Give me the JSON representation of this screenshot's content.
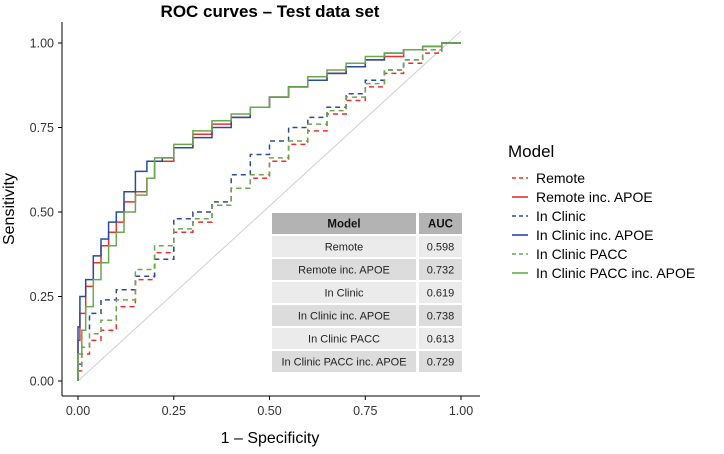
{
  "chart_data": {
    "type": "line",
    "title": "ROC curves – Test data set",
    "xlabel": "1 – Specificity",
    "ylabel": "Sensitivity",
    "xlim": [
      0,
      1
    ],
    "ylim": [
      0,
      1
    ],
    "xticks": [
      "0.00",
      "0.25",
      "0.50",
      "0.75",
      "1.00"
    ],
    "yticks": [
      "0.00",
      "0.25",
      "0.50",
      "0.75",
      "1.00"
    ],
    "grid": false,
    "reference_line": "diagonal",
    "legend": {
      "title": "Model",
      "placement": "right"
    },
    "series": [
      {
        "name": "Remote",
        "color": "#e8312f",
        "dash": "dashed",
        "x": [
          0,
          0.01,
          0.03,
          0.06,
          0.1,
          0.15,
          0.2,
          0.25,
          0.3,
          0.35,
          0.4,
          0.45,
          0.5,
          0.55,
          0.6,
          0.65,
          0.7,
          0.75,
          0.8,
          0.85,
          0.9,
          0.95,
          1
        ],
        "y": [
          0,
          0.03,
          0.08,
          0.12,
          0.15,
          0.22,
          0.3,
          0.38,
          0.44,
          0.47,
          0.52,
          0.57,
          0.6,
          0.65,
          0.7,
          0.74,
          0.79,
          0.83,
          0.87,
          0.91,
          0.94,
          0.97,
          1
        ]
      },
      {
        "name": "Remote inc. APOE",
        "color": "#e8312f",
        "dash": "solid",
        "x": [
          0,
          0.005,
          0.02,
          0.04,
          0.06,
          0.08,
          0.1,
          0.12,
          0.15,
          0.18,
          0.2,
          0.25,
          0.3,
          0.35,
          0.4,
          0.45,
          0.5,
          0.55,
          0.6,
          0.65,
          0.7,
          0.75,
          0.8,
          0.85,
          0.9,
          0.95,
          1
        ],
        "y": [
          0,
          0.12,
          0.2,
          0.28,
          0.35,
          0.4,
          0.44,
          0.47,
          0.53,
          0.56,
          0.6,
          0.65,
          0.69,
          0.73,
          0.76,
          0.78,
          0.81,
          0.84,
          0.87,
          0.89,
          0.91,
          0.93,
          0.95,
          0.96,
          0.98,
          0.99,
          1
        ]
      },
      {
        "name": "In Clinic",
        "color": "#2a4a9c",
        "dash": "dashed",
        "x": [
          0,
          0.01,
          0.03,
          0.06,
          0.1,
          0.15,
          0.2,
          0.25,
          0.3,
          0.35,
          0.4,
          0.45,
          0.5,
          0.55,
          0.6,
          0.65,
          0.7,
          0.75,
          0.8,
          0.85,
          0.9,
          0.95,
          1
        ],
        "y": [
          0,
          0.05,
          0.15,
          0.2,
          0.24,
          0.27,
          0.31,
          0.36,
          0.48,
          0.5,
          0.53,
          0.61,
          0.67,
          0.71,
          0.75,
          0.78,
          0.81,
          0.85,
          0.89,
          0.92,
          0.95,
          0.98,
          1
        ]
      },
      {
        "name": "In Clinic inc. APOE",
        "color": "#2a4a9c",
        "dash": "solid",
        "x": [
          0,
          0.005,
          0.02,
          0.04,
          0.06,
          0.08,
          0.1,
          0.12,
          0.15,
          0.18,
          0.2,
          0.22,
          0.25,
          0.3,
          0.35,
          0.4,
          0.45,
          0.5,
          0.55,
          0.6,
          0.65,
          0.7,
          0.75,
          0.8,
          0.85,
          0.9,
          0.95,
          1
        ],
        "y": [
          0,
          0.16,
          0.25,
          0.3,
          0.37,
          0.42,
          0.47,
          0.5,
          0.56,
          0.62,
          0.65,
          0.65,
          0.66,
          0.69,
          0.72,
          0.75,
          0.78,
          0.81,
          0.84,
          0.87,
          0.89,
          0.91,
          0.93,
          0.95,
          0.97,
          0.98,
          0.99,
          1
        ]
      },
      {
        "name": "In Clinic PACC",
        "color": "#6aa84f",
        "dash": "dashed",
        "x": [
          0,
          0.01,
          0.03,
          0.06,
          0.1,
          0.15,
          0.2,
          0.25,
          0.3,
          0.35,
          0.4,
          0.45,
          0.5,
          0.55,
          0.6,
          0.65,
          0.7,
          0.75,
          0.8,
          0.85,
          0.9,
          0.95,
          1
        ],
        "y": [
          0,
          0.04,
          0.1,
          0.14,
          0.18,
          0.24,
          0.33,
          0.4,
          0.45,
          0.48,
          0.52,
          0.57,
          0.61,
          0.66,
          0.71,
          0.76,
          0.8,
          0.84,
          0.88,
          0.92,
          0.95,
          0.98,
          1
        ]
      },
      {
        "name": "In Clinic PACC inc. APOE",
        "color": "#6aa84f",
        "dash": "solid",
        "x": [
          0,
          0.01,
          0.02,
          0.04,
          0.06,
          0.08,
          0.1,
          0.12,
          0.15,
          0.18,
          0.2,
          0.25,
          0.3,
          0.35,
          0.4,
          0.45,
          0.5,
          0.55,
          0.6,
          0.65,
          0.7,
          0.75,
          0.8,
          0.85,
          0.9,
          0.95,
          1
        ],
        "y": [
          0,
          0.08,
          0.15,
          0.22,
          0.3,
          0.35,
          0.4,
          0.44,
          0.5,
          0.55,
          0.6,
          0.66,
          0.7,
          0.74,
          0.77,
          0.79,
          0.81,
          0.84,
          0.87,
          0.9,
          0.92,
          0.94,
          0.96,
          0.97,
          0.98,
          0.99,
          1
        ]
      }
    ]
  },
  "auc_table": {
    "headers": [
      "Model",
      "AUC"
    ],
    "rows": [
      [
        "Remote",
        "0.598"
      ],
      [
        "Remote inc. APOE",
        "0.732"
      ],
      [
        "In Clinic",
        "0.619"
      ],
      [
        "In Clinic inc. APOE",
        "0.738"
      ],
      [
        "In Clinic PACC",
        "0.613"
      ],
      [
        "In Clinic PACC inc. APOE",
        "0.729"
      ]
    ],
    "header_color": "#b3b3b3",
    "row_colors": [
      "#ebebeb",
      "#dcdcdc"
    ]
  }
}
